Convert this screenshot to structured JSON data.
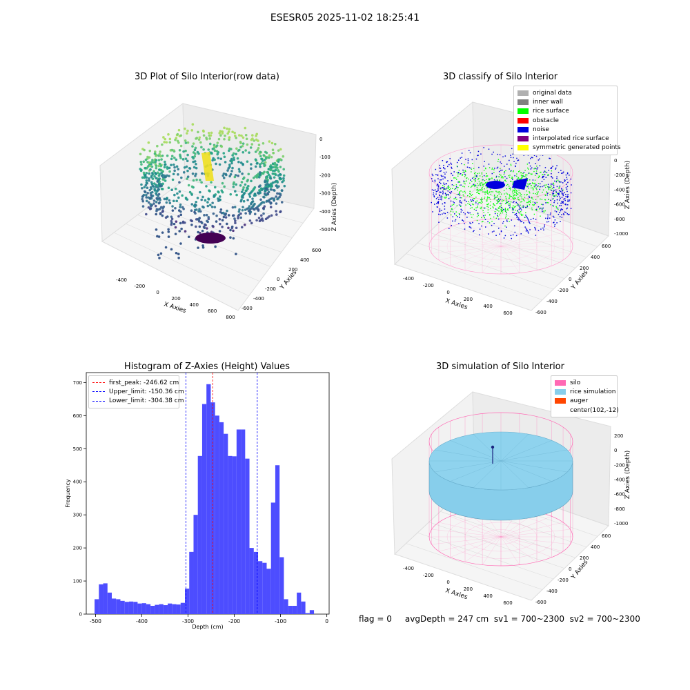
{
  "figure": {
    "title": "ESESR05 2025-11-02 18:25:41",
    "footer": "flag = 0     avgDepth = 247 cm  sv1 = 700~2300  sv2 = 700~2300"
  },
  "chart_data": [
    {
      "type": "scatter",
      "title": "3D Plot of Silo Interior(row data)",
      "xlabel": "X Axies",
      "ylabel": "Y Axies",
      "zlabel": "Z Axies (Depth)",
      "x_ticks": [
        -400,
        -200,
        0,
        200,
        400,
        600,
        800
      ],
      "y_ticks": [
        -600,
        -400,
        -200,
        0,
        200,
        400,
        600
      ],
      "z_ticks": [
        0,
        -100,
        -200,
        -300,
        -400,
        -500
      ],
      "colormap": "viridis"
    },
    {
      "type": "scatter",
      "title": "3D classify of Silo Interior",
      "xlabel": "X Axies",
      "ylabel": "Y Axies",
      "zlabel": "Z Axies (Depth)",
      "x_ticks": [
        -400,
        -200,
        0,
        200,
        400,
        600
      ],
      "y_ticks": [
        -600,
        -400,
        -200,
        0,
        200,
        400,
        600
      ],
      "z_ticks": [
        0,
        -200,
        -400,
        -600,
        -800,
        -1000
      ],
      "legend": [
        {
          "name": "original data",
          "color": "#b0b0b0"
        },
        {
          "name": "inner wall",
          "color": "#808080"
        },
        {
          "name": "rice surface",
          "color": "#00ff00"
        },
        {
          "name": "obstacle",
          "color": "#ff0000"
        },
        {
          "name": "noise",
          "color": "#0000dd"
        },
        {
          "name": "interpolated rice surface",
          "color": "#800080"
        },
        {
          "name": "symmetric generated points",
          "color": "#ffff00"
        }
      ]
    },
    {
      "type": "bar",
      "title": "Histogram of Z-Axies (Height) Values",
      "xlabel": "Depth (cm)",
      "ylabel": "Frequency",
      "xlim": [
        -520,
        5
      ],
      "ylim": [
        0,
        730
      ],
      "x_ticks": [
        -500,
        -400,
        -300,
        -200,
        -100,
        0
      ],
      "y_ticks": [
        0,
        100,
        200,
        300,
        400,
        500,
        600,
        700
      ],
      "bin_start": -502,
      "bin_width": 9.3,
      "values": [
        45,
        90,
        93,
        65,
        47,
        45,
        40,
        37,
        38,
        37,
        32,
        33,
        30,
        25,
        28,
        30,
        27,
        32,
        30,
        29,
        34,
        77,
        188,
        300,
        478,
        635,
        695,
        640,
        600,
        580,
        545,
        478,
        477,
        558,
        558,
        470,
        200,
        188,
        160,
        155,
        137,
        337,
        450,
        172,
        45,
        25,
        25,
        65,
        38,
        3,
        12
      ],
      "color": "#4d4dff",
      "lines": [
        {
          "label": "first_peak: -246.62 cm",
          "x": -246.62,
          "color": "#ff0000"
        },
        {
          "label": "Upper_limit: -150.36 cm",
          "x": -150.36,
          "color": "#0000ff"
        },
        {
          "label": "Lower_limit: -304.38 cm",
          "x": -304.38,
          "color": "#0000ff"
        }
      ]
    },
    {
      "type": "scatter",
      "title": "3D simulation of Silo Interior",
      "xlabel": "X Axies",
      "ylabel": "Y Axies",
      "zlabel": "Z Axies (Depth)",
      "x_ticks": [
        -400,
        -200,
        0,
        200,
        400,
        600
      ],
      "y_ticks": [
        -600,
        -400,
        -200,
        0,
        200,
        400,
        600
      ],
      "z_ticks": [
        200,
        0,
        -200,
        -400,
        -600,
        -800,
        -1000
      ],
      "legend": [
        {
          "name": "silo",
          "color": "#ff69b4"
        },
        {
          "name": "rice simulation",
          "color": "#87ceeb"
        },
        {
          "name": "auger",
          "color": "#ff4500"
        },
        {
          "name": "center(102,-12)",
          "color": ""
        }
      ]
    }
  ]
}
